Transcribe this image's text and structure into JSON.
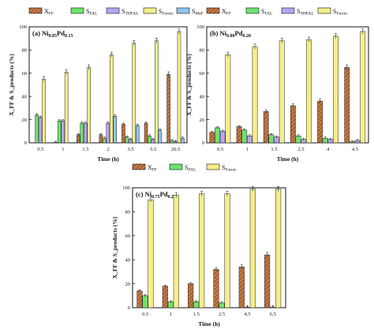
{
  "colors": {
    "XFF": "#c87a45",
    "SFAL": "#6ee36e",
    "STHFAL": "#b9a4f0",
    "SFurnic": "#f5ee8a",
    "SMeF": "#8fc5ef",
    "axis": "#111111",
    "error": "#333333"
  },
  "legend": {
    "XFF": {
      "main": "X",
      "sub": "FF"
    },
    "SFAL": {
      "main": "S",
      "sub": "FAL"
    },
    "STHFAL": {
      "main": "S",
      "sub": "THFAL"
    },
    "SFurnic": {
      "main": "S",
      "sub": "Furnic"
    },
    "SMeF": {
      "main": "S",
      "sub": "MeF"
    }
  },
  "chart_data": [
    {
      "type": "bar",
      "panel_label": "(a)",
      "title_parts": [
        {
          "t": "Ni",
          "sub": false
        },
        {
          "t": "0.85",
          "sub": true
        },
        {
          "t": "Pd",
          "sub": false
        },
        {
          "t": "0.15",
          "sub": true
        }
      ],
      "xlabel": "Time (h)",
      "ylabel": "X_FF & S_products (%)",
      "ylim": [
        0,
        100
      ],
      "yticks": [
        0,
        20,
        40,
        60,
        80,
        100
      ],
      "categories": [
        "0.5",
        "1",
        "1.5",
        "2",
        "3.5",
        "5.5",
        "20.5"
      ],
      "series": [
        {
          "key": "XFF",
          "values": [
            null,
            0.5,
            7,
            7,
            16,
            17,
            59
          ]
        },
        {
          "key": "SFAL",
          "values": [
            24,
            19,
            17,
            4,
            5,
            6,
            2
          ]
        },
        {
          "key": "STHFAL",
          "values": [
            22,
            19,
            17,
            17,
            3,
            3,
            1
          ]
        },
        {
          "key": "SFurnic",
          "values": [
            55,
            61,
            65,
            76,
            86,
            88,
            96
          ]
        },
        {
          "key": "SMeF",
          "values": [
            null,
            null,
            null,
            23,
            15,
            11,
            4
          ]
        }
      ],
      "legend_items": [
        "XFF",
        "SFAL",
        "STHFAL",
        "SFurnic",
        "SMeF"
      ]
    },
    {
      "type": "bar",
      "panel_label": "(b)",
      "title_parts": [
        {
          "t": "Ni",
          "sub": false
        },
        {
          "t": "0.80",
          "sub": true
        },
        {
          "t": "Pd",
          "sub": false
        },
        {
          "t": "0.20",
          "sub": true
        }
      ],
      "xlabel": "Time (h)",
      "ylabel": "X_FF & S_products (%)",
      "ylim": [
        0,
        100
      ],
      "yticks": [
        0,
        20,
        40,
        60,
        80,
        100
      ],
      "categories": [
        "0.5",
        "1",
        "1.5",
        "2.5",
        "4",
        "4.5"
      ],
      "series": [
        {
          "key": "XFF",
          "values": [
            9,
            14,
            27,
            32,
            36,
            65
          ]
        },
        {
          "key": "SFAL",
          "values": [
            13,
            11,
            7,
            6,
            4,
            1
          ]
        },
        {
          "key": "STHFAL",
          "values": [
            10,
            6,
            5,
            3,
            3,
            2
          ]
        },
        {
          "key": "SFurnic",
          "values": [
            76,
            83,
            88,
            89,
            92,
            96
          ]
        }
      ],
      "legend_items": [
        "XFF",
        "SFAL",
        "STHFAL",
        "SFurnic"
      ]
    },
    {
      "type": "bar",
      "panel_label": "(c)",
      "title_parts": [
        {
          "t": "Ni",
          "sub": false
        },
        {
          "t": "0.75",
          "sub": true
        },
        {
          "t": "Pd",
          "sub": false
        },
        {
          "t": "0.25",
          "sub": true
        }
      ],
      "xlabel": "Time (h)",
      "ylabel": "X_FF & S_products (%)",
      "ylim": [
        0,
        100
      ],
      "yticks": [
        0,
        20,
        40,
        60,
        80,
        100
      ],
      "categories": [
        "0.5",
        "1",
        "1.5",
        "2.5",
        "4.5",
        "6.5"
      ],
      "series": [
        {
          "key": "XFF",
          "values": [
            14,
            18,
            20,
            32,
            34,
            44
          ]
        },
        {
          "key": "SFAL",
          "values": [
            10,
            5,
            5,
            4,
            0.5,
            0.5
          ]
        },
        {
          "key": "SFurnic",
          "values": [
            90,
            94,
            95,
            95,
            99,
            99
          ]
        }
      ],
      "legend_items": [
        "XFF",
        "SFAL",
        "SFurnic"
      ]
    }
  ]
}
